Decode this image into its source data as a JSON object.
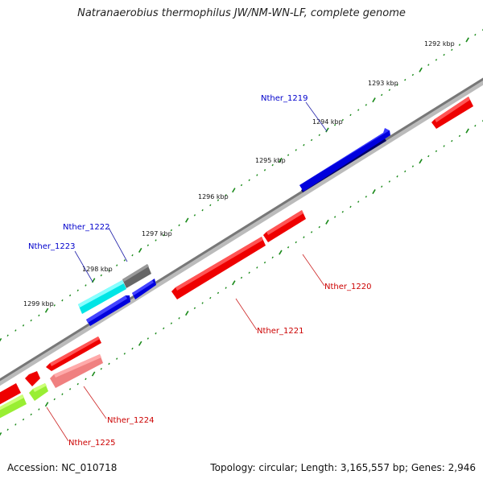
{
  "title": "Natranaerobius thermophilus JW/NM-WN-LF, complete genome",
  "footer": {
    "accession": "Accession: NC_010718",
    "summary": "Topology: circular; Length: 3,165,557 bp; Genes: 2,946"
  },
  "ruler": {
    "tick_labels": [
      "1292 kbp",
      "1293 kbp",
      "1294 kbp",
      "1295 kbp",
      "1296 kbp",
      "1297 kbp",
      "1298 kbp",
      "1299 kbp"
    ],
    "tick_color": "#1a8a1a"
  },
  "genes": [
    {
      "name": "Nther_1219",
      "strand": "+",
      "color": "#0000dd"
    },
    {
      "name": "Nther_1222",
      "strand": "+",
      "color": "#666666"
    },
    {
      "name": "Nther_1223",
      "strand": "+",
      "color": "#00e5e5"
    },
    {
      "name": "Nther_1220",
      "strand": "-",
      "color": "#ee0000"
    },
    {
      "name": "Nther_1221",
      "strand": "-",
      "color": "#ee0000"
    },
    {
      "name": "Nther_1224",
      "strand": "-",
      "color": "#f08080"
    },
    {
      "name": "Nther_1225",
      "strand": "-",
      "color": "#99ee33"
    }
  ],
  "colors": {
    "forward_label": "#0000cc",
    "reverse_label": "#cc0000",
    "backbone": "#888888"
  }
}
